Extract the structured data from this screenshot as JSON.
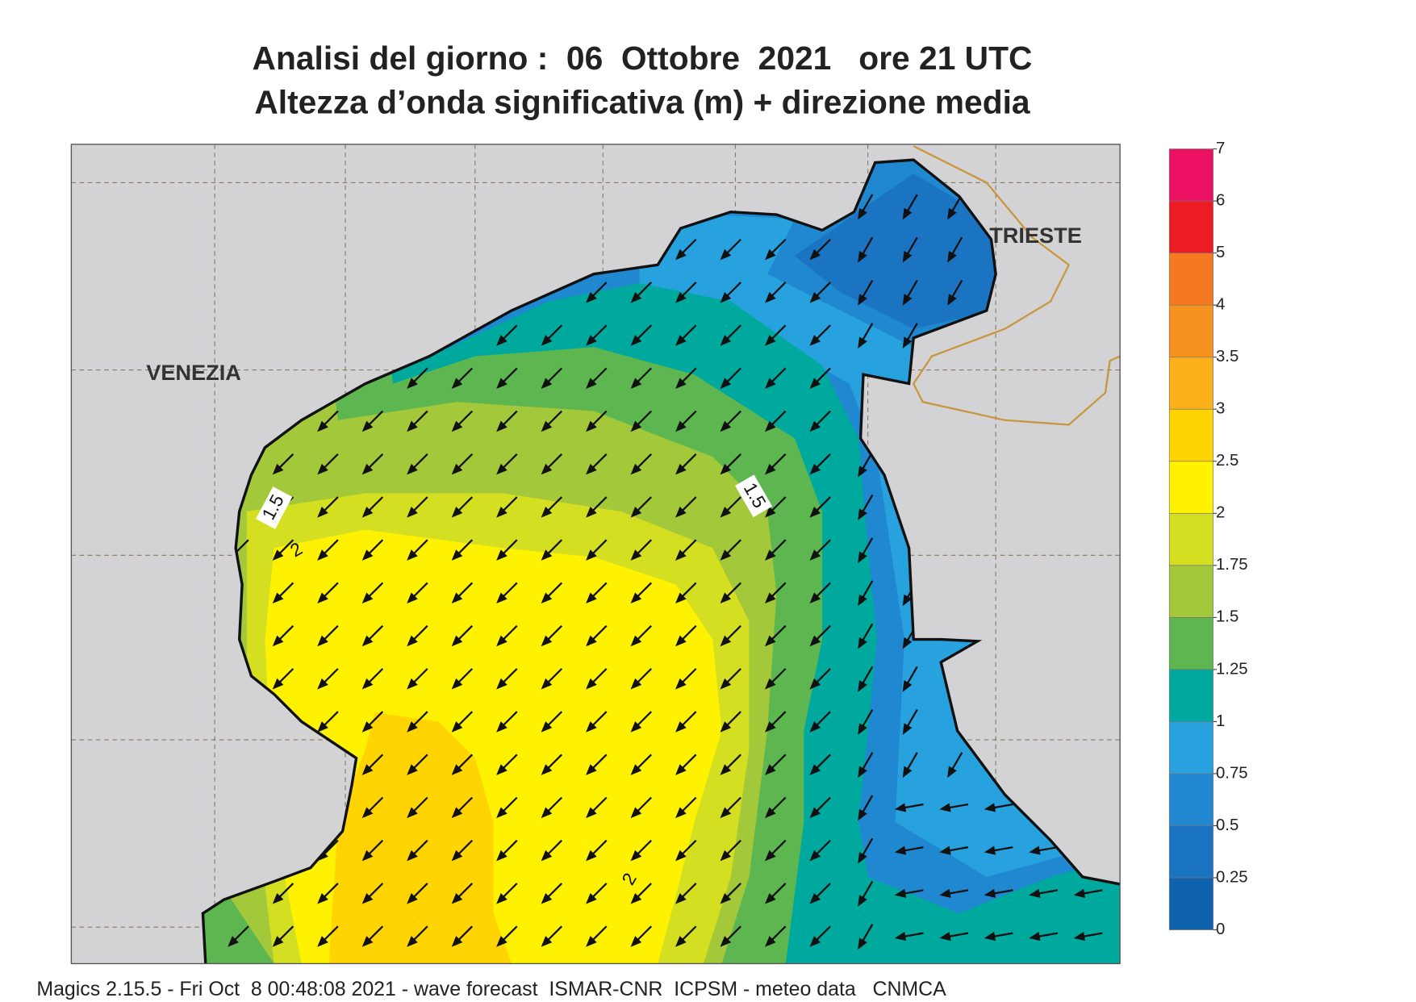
{
  "title": [
    "Analisi del giorno :  06  Ottobre  2021   ore 21 UTC",
    "Altezza d’onda significativa (m) + direzione media"
  ],
  "map": {
    "places": [
      "VENEZIA",
      "TRIESTE"
    ],
    "contour_labels": [
      "1.5",
      "1.5",
      "2",
      "2"
    ]
  },
  "colorbar": {
    "ticks": [
      0,
      0.25,
      0.5,
      0.75,
      1,
      1.25,
      1.5,
      1.75,
      2,
      2.5,
      3,
      3.5,
      4,
      5,
      6,
      7
    ],
    "colors": [
      "#0f62ae",
      "#1a74c1",
      "#1f88d0",
      "#27a2df",
      "#00a99d",
      "#5db64f",
      "#a3c83a",
      "#d4df22",
      "#fff200",
      "#ffd400",
      "#fbb01a",
      "#f6921e",
      "#f47920",
      "#ed1c24",
      "#ed1164"
    ]
  },
  "footer": "Magics 2.15.5 - Fri Oct  8 00:48:08 2021 - wave forecast  ISMAR-CNR  ICPSM - meteo data   CNMCA"
}
